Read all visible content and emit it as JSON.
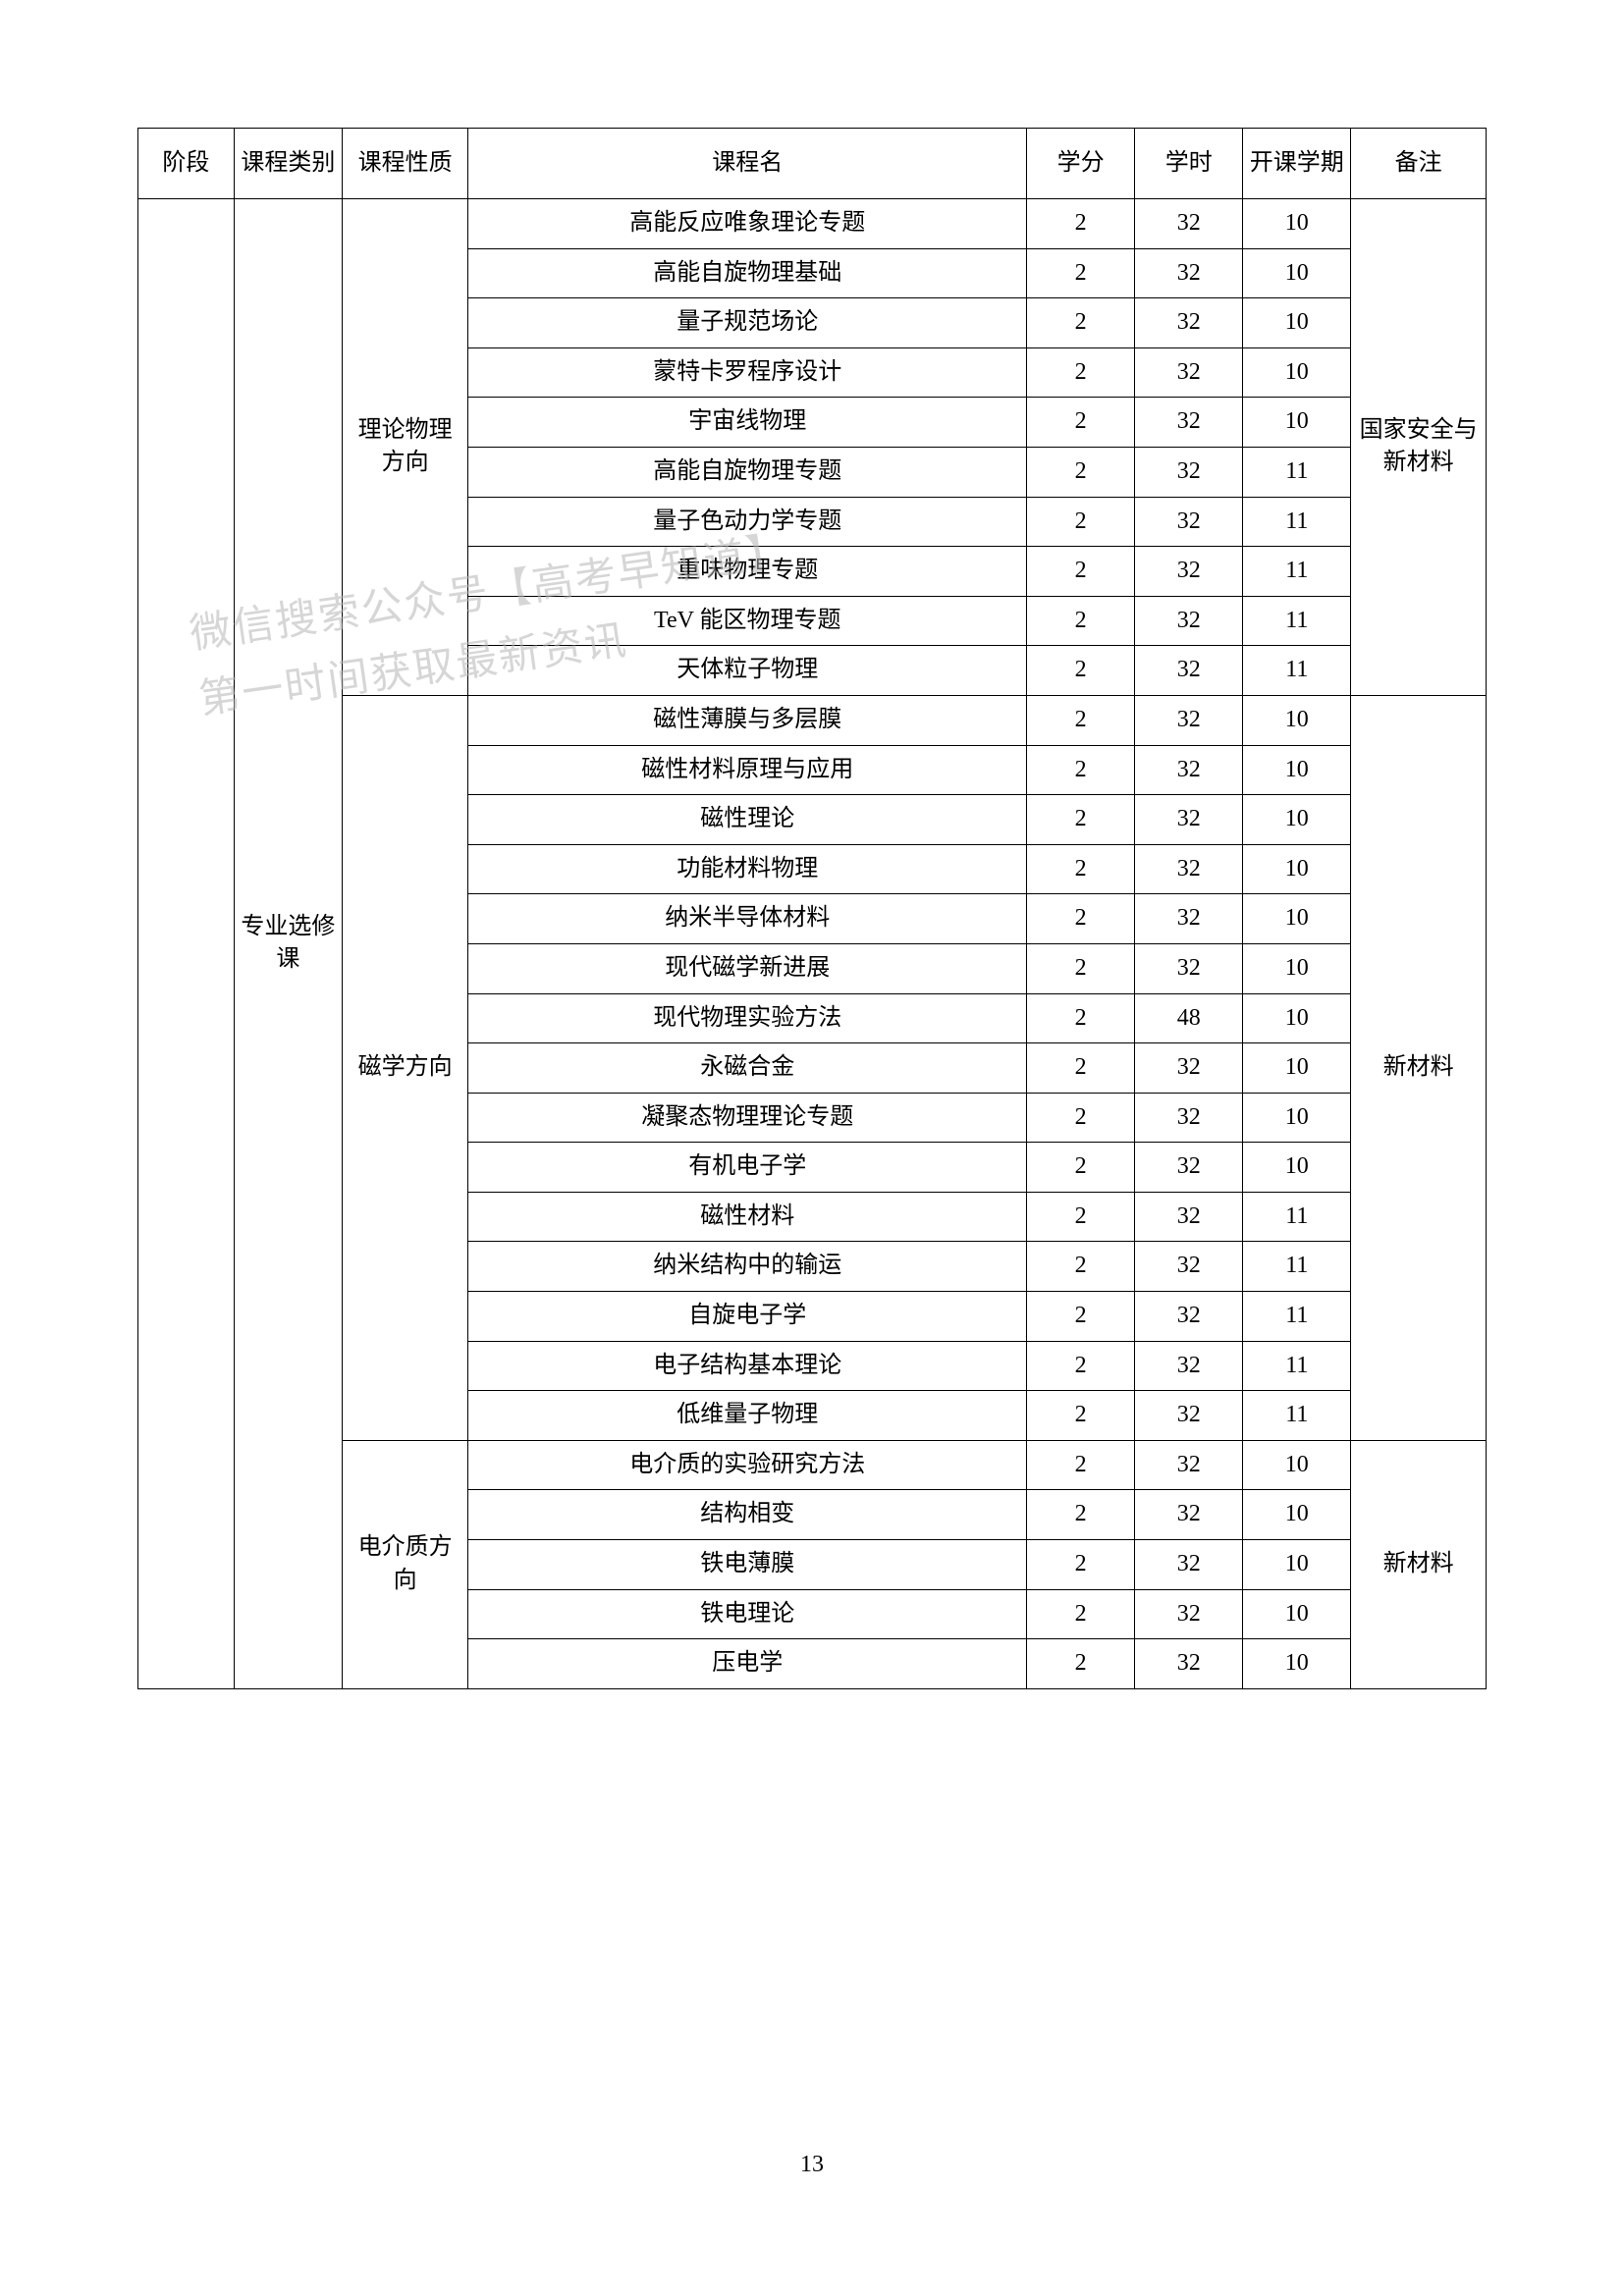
{
  "header": {
    "stage": "阶段",
    "category": "课程类别",
    "nature": "课程性质",
    "name": "课程名",
    "credit": "学分",
    "hours": "学时",
    "semester": "开课学期",
    "note": "备注"
  },
  "stage_label": "",
  "category_label": "专业选修课",
  "sections": [
    {
      "nature": "理论物理方向",
      "note": "国家安全与新材料",
      "rows": [
        {
          "name": "高能反应唯象理论专题",
          "credit": "2",
          "hours": "32",
          "semester": "10"
        },
        {
          "name": "高能自旋物理基础",
          "credit": "2",
          "hours": "32",
          "semester": "10"
        },
        {
          "name": "量子规范场论",
          "credit": "2",
          "hours": "32",
          "semester": "10"
        },
        {
          "name": "蒙特卡罗程序设计",
          "credit": "2",
          "hours": "32",
          "semester": "10"
        },
        {
          "name": "宇宙线物理",
          "credit": "2",
          "hours": "32",
          "semester": "10"
        },
        {
          "name": "高能自旋物理专题",
          "credit": "2",
          "hours": "32",
          "semester": "11"
        },
        {
          "name": "量子色动力学专题",
          "credit": "2",
          "hours": "32",
          "semester": "11"
        },
        {
          "name": "重味物理专题",
          "credit": "2",
          "hours": "32",
          "semester": "11"
        },
        {
          "name": "TeV 能区物理专题",
          "credit": "2",
          "hours": "32",
          "semester": "11"
        },
        {
          "name": "天体粒子物理",
          "credit": "2",
          "hours": "32",
          "semester": "11"
        }
      ]
    },
    {
      "nature": "磁学方向",
      "note": "新材料",
      "rows": [
        {
          "name": "磁性薄膜与多层膜",
          "credit": "2",
          "hours": "32",
          "semester": "10"
        },
        {
          "name": "磁性材料原理与应用",
          "credit": "2",
          "hours": "32",
          "semester": "10"
        },
        {
          "name": "磁性理论",
          "credit": "2",
          "hours": "32",
          "semester": "10"
        },
        {
          "name": "功能材料物理",
          "credit": "2",
          "hours": "32",
          "semester": "10"
        },
        {
          "name": "纳米半导体材料",
          "credit": "2",
          "hours": "32",
          "semester": "10"
        },
        {
          "name": "现代磁学新进展",
          "credit": "2",
          "hours": "32",
          "semester": "10"
        },
        {
          "name": "现代物理实验方法",
          "credit": "2",
          "hours": "48",
          "semester": "10"
        },
        {
          "name": "永磁合金",
          "credit": "2",
          "hours": "32",
          "semester": "10"
        },
        {
          "name": "凝聚态物理理论专题",
          "credit": "2",
          "hours": "32",
          "semester": "10"
        },
        {
          "name": "有机电子学",
          "credit": "2",
          "hours": "32",
          "semester": "10"
        },
        {
          "name": "磁性材料",
          "credit": "2",
          "hours": "32",
          "semester": "11"
        },
        {
          "name": "纳米结构中的输运",
          "credit": "2",
          "hours": "32",
          "semester": "11"
        },
        {
          "name": "自旋电子学",
          "credit": "2",
          "hours": "32",
          "semester": "11"
        },
        {
          "name": "电子结构基本理论",
          "credit": "2",
          "hours": "32",
          "semester": "11"
        },
        {
          "name": "低维量子物理",
          "credit": "2",
          "hours": "32",
          "semester": "11"
        }
      ]
    },
    {
      "nature": "电介质方向",
      "note": "新材料",
      "rows": [
        {
          "name": "电介质的实验研究方法",
          "credit": "2",
          "hours": "32",
          "semester": "10"
        },
        {
          "name": "结构相变",
          "credit": "2",
          "hours": "32",
          "semester": "10"
        },
        {
          "name": "铁电薄膜",
          "credit": "2",
          "hours": "32",
          "semester": "10"
        },
        {
          "name": "铁电理论",
          "credit": "2",
          "hours": "32",
          "semester": "10"
        },
        {
          "name": "压电学",
          "credit": "2",
          "hours": "32",
          "semester": "10"
        }
      ]
    }
  ],
  "page_number": "13",
  "watermark_line1": "微信搜索公众号【高考早知道】",
  "watermark_line2": "第一时间获取最新资讯"
}
